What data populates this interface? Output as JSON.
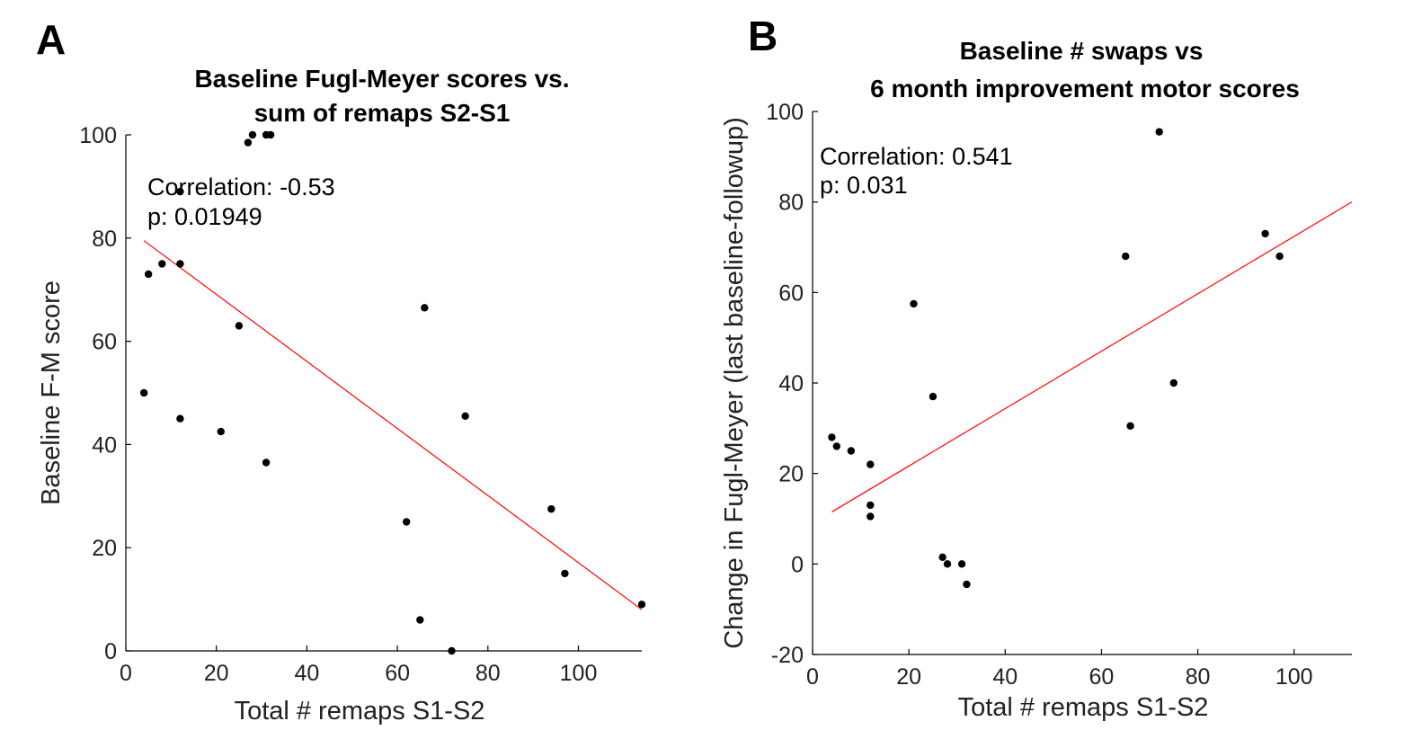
{
  "chart_data": [
    {
      "type": "scatter",
      "panel_label": "A",
      "title": [
        "Baseline Fugl-Meyer scores vs.",
        "sum of remaps S2-S1"
      ],
      "xlabel": "Total # remaps S1-S2",
      "ylabel": "Baseline F-M score",
      "xlim": [
        0,
        114
      ],
      "ylim": [
        0,
        100
      ],
      "xticks": [
        0,
        20,
        40,
        60,
        80,
        100
      ],
      "yticks": [
        0,
        20,
        40,
        60,
        80,
        100
      ],
      "annotation": [
        "Correlation: -0.53",
        "p: 0.01949"
      ],
      "fit_line": {
        "x": [
          4,
          114
        ],
        "y": [
          79.5,
          8
        ]
      },
      "line_color": "#ff0000",
      "points": [
        {
          "x": 4,
          "y": 50
        },
        {
          "x": 5,
          "y": 73
        },
        {
          "x": 8,
          "y": 75
        },
        {
          "x": 12,
          "y": 75
        },
        {
          "x": 12,
          "y": 89
        },
        {
          "x": 12,
          "y": 45
        },
        {
          "x": 21,
          "y": 42.5
        },
        {
          "x": 25,
          "y": 63
        },
        {
          "x": 27,
          "y": 98.5
        },
        {
          "x": 28,
          "y": 100
        },
        {
          "x": 31,
          "y": 100
        },
        {
          "x": 32,
          "y": 100
        },
        {
          "x": 31,
          "y": 36.5
        },
        {
          "x": 62,
          "y": 25
        },
        {
          "x": 65,
          "y": 6
        },
        {
          "x": 66,
          "y": 66.5
        },
        {
          "x": 72,
          "y": 0
        },
        {
          "x": 75,
          "y": 45.5
        },
        {
          "x": 94,
          "y": 27.5
        },
        {
          "x": 97,
          "y": 15
        },
        {
          "x": 114,
          "y": 9
        }
      ]
    },
    {
      "type": "scatter",
      "panel_label": "B",
      "title": [
        "Baseline # swaps vs",
        "6 month improvement motor scores"
      ],
      "xlabel": "Total # remaps S1-S2",
      "ylabel": "Change in Fugl-Meyer (last baseline-followup)",
      "xlim": [
        0,
        112
      ],
      "ylim": [
        -20,
        100
      ],
      "xticks": [
        0,
        20,
        40,
        60,
        80,
        100
      ],
      "yticks": [
        -20,
        0,
        20,
        40,
        60,
        80,
        100
      ],
      "annotation": [
        "Correlation: 0.541",
        "p: 0.031"
      ],
      "fit_line": {
        "x": [
          4,
          112
        ],
        "y": [
          11.5,
          80
        ]
      },
      "line_color": "#ff0000",
      "points": [
        {
          "x": 4,
          "y": 28
        },
        {
          "x": 5,
          "y": 26
        },
        {
          "x": 8,
          "y": 25
        },
        {
          "x": 12,
          "y": 22
        },
        {
          "x": 12,
          "y": 13
        },
        {
          "x": 12,
          "y": 10.5
        },
        {
          "x": 21,
          "y": 57.5
        },
        {
          "x": 25,
          "y": 37
        },
        {
          "x": 27,
          "y": 1.5
        },
        {
          "x": 28,
          "y": 0
        },
        {
          "x": 31,
          "y": 0
        },
        {
          "x": 32,
          "y": -4.5
        },
        {
          "x": 65,
          "y": 68
        },
        {
          "x": 66,
          "y": 30.5
        },
        {
          "x": 72,
          "y": 95.5
        },
        {
          "x": 75,
          "y": 40
        },
        {
          "x": 94,
          "y": 73
        },
        {
          "x": 97,
          "y": 68
        }
      ]
    }
  ]
}
